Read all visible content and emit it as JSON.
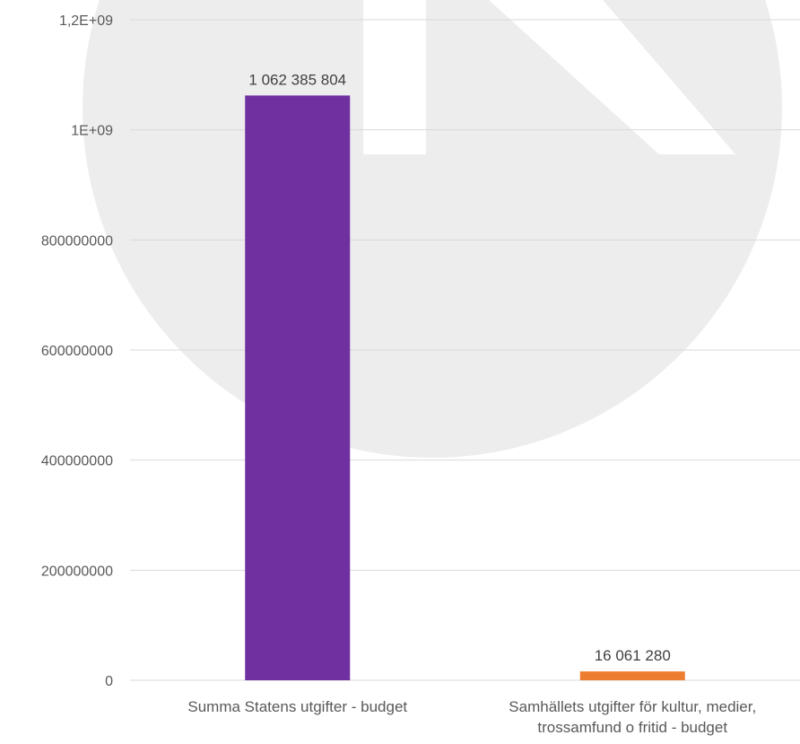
{
  "chart_data": {
    "type": "bar",
    "title": "",
    "xlabel": "",
    "ylabel": "",
    "categories": [
      [
        "Summa Statens utgifter - budget"
      ],
      [
        "Samhällets utgifter för kultur, medier,",
        "trossamfund o fritid - budget"
      ]
    ],
    "values": [
      1062385804,
      16061280
    ],
    "data_labels": [
      "1 062 385 804",
      "16 061 280"
    ],
    "colors": [
      "#7030a0",
      "#ed7d31"
    ],
    "ylim": [
      0,
      1200000000
    ],
    "yticks": [
      0,
      200000000,
      400000000,
      600000000,
      800000000,
      1000000000,
      1200000000
    ],
    "ytick_labels": [
      "0",
      "200000000",
      "400000000",
      "600000000",
      "800000000",
      "1E+09",
      "1,2E+09"
    ],
    "grid": true,
    "legend": "none"
  },
  "watermark": "logo"
}
